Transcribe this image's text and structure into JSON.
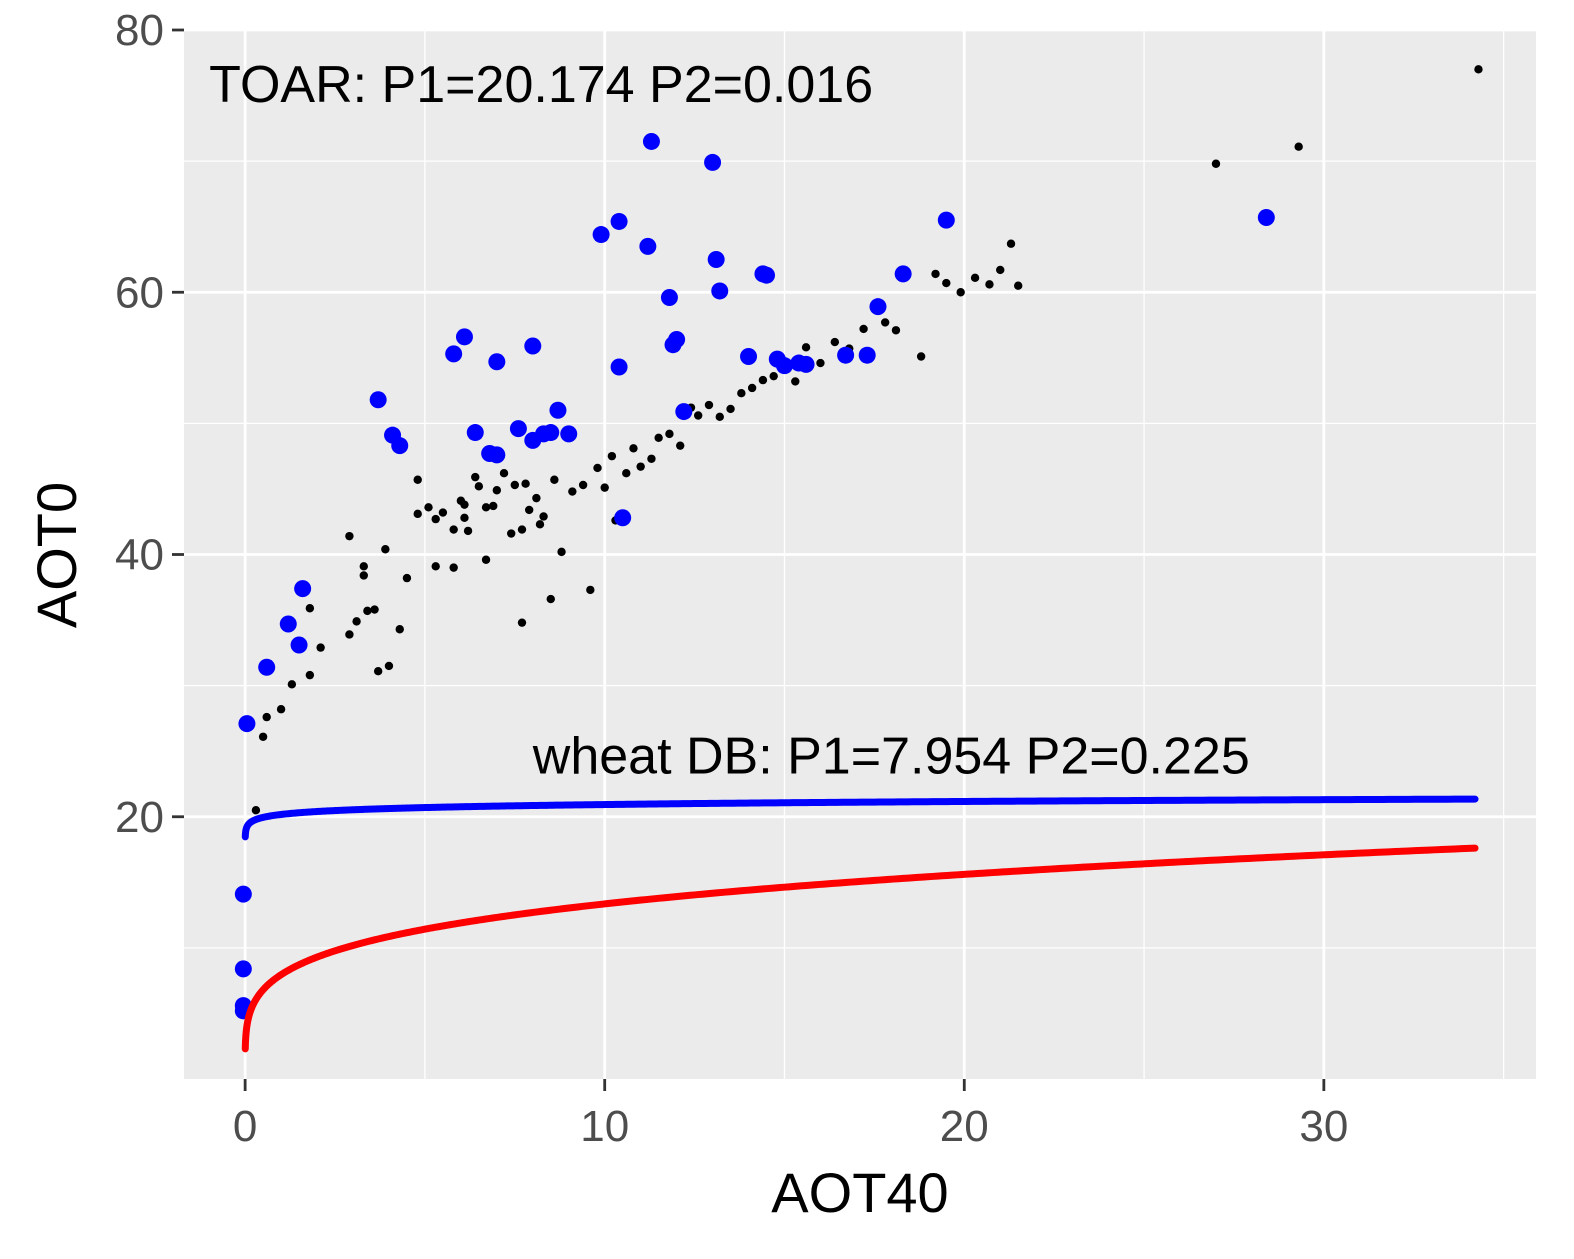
{
  "chart_data": {
    "type": "scatter",
    "xlabel": "AOT40",
    "ylabel": "AOT0",
    "xlim": [
      -1.7,
      35.9
    ],
    "ylim": [
      0,
      80
    ],
    "x_ticks": [
      0,
      10,
      20,
      30
    ],
    "y_ticks": [
      20,
      40,
      60,
      80
    ],
    "x_tick_labels": [
      "0",
      "10",
      "20",
      "30"
    ],
    "y_tick_labels": [
      "20",
      "40",
      "60",
      "80"
    ],
    "grid": true,
    "annotations": [
      {
        "text": "TOAR: P1=20.174  P2=0.016",
        "x": -1.0,
        "y": 74.5
      },
      {
        "text": "wheat DB: P1=7.954  P2=0.225",
        "x": 8.0,
        "y": 23.3
      }
    ],
    "curves": [
      {
        "color": "#0000ff",
        "P1": 20.174,
        "P2": 0.016,
        "x_range": [
          0,
          34.2
        ]
      },
      {
        "color": "#ff0000",
        "P1": 7.954,
        "P2": 0.225,
        "x_range": [
          0,
          34.2
        ]
      }
    ],
    "series": [
      {
        "color": "#0000ff",
        "points": [
          [
            -0.05,
            5.2
          ],
          [
            -0.05,
            5.6
          ],
          [
            -0.05,
            8.4
          ],
          [
            -0.05,
            14.1
          ],
          [
            0.05,
            27.1
          ],
          [
            0.6,
            31.4
          ],
          [
            1.2,
            34.7
          ],
          [
            1.5,
            33.1
          ],
          [
            1.6,
            37.4
          ],
          [
            3.7,
            51.8
          ],
          [
            4.1,
            49.1
          ],
          [
            4.3,
            48.3
          ],
          [
            5.8,
            55.3
          ],
          [
            6.1,
            56.6
          ],
          [
            6.4,
            49.3
          ],
          [
            6.8,
            47.7
          ],
          [
            7.0,
            47.6
          ],
          [
            7.0,
            54.7
          ],
          [
            7.6,
            49.6
          ],
          [
            8.0,
            55.9
          ],
          [
            8.0,
            48.7
          ],
          [
            8.3,
            49.2
          ],
          [
            8.5,
            49.3
          ],
          [
            8.7,
            51.0
          ],
          [
            9.0,
            49.2
          ],
          [
            9.9,
            64.4
          ],
          [
            10.4,
            54.3
          ],
          [
            10.4,
            65.4
          ],
          [
            10.5,
            42.8
          ],
          [
            11.2,
            63.5
          ],
          [
            11.3,
            71.5
          ],
          [
            11.8,
            59.6
          ],
          [
            11.9,
            56.0
          ],
          [
            12.0,
            56.4
          ],
          [
            12.2,
            50.9
          ],
          [
            13.0,
            69.9
          ],
          [
            13.1,
            62.5
          ],
          [
            13.2,
            60.1
          ],
          [
            14.0,
            55.1
          ],
          [
            14.4,
            61.4
          ],
          [
            14.5,
            61.3
          ],
          [
            14.8,
            54.9
          ],
          [
            15.0,
            54.4
          ],
          [
            15.4,
            54.6
          ],
          [
            15.6,
            54.5
          ],
          [
            16.7,
            55.2
          ],
          [
            17.3,
            55.2
          ],
          [
            17.6,
            58.9
          ],
          [
            18.3,
            61.4
          ],
          [
            19.5,
            65.5
          ],
          [
            28.4,
            65.7
          ]
        ]
      },
      {
        "color": "#000000",
        "points": [
          [
            0.3,
            20.5
          ],
          [
            0.5,
            26.1
          ],
          [
            0.6,
            27.6
          ],
          [
            1.0,
            28.2
          ],
          [
            1.3,
            30.1
          ],
          [
            1.8,
            30.8
          ],
          [
            1.8,
            35.9
          ],
          [
            2.1,
            32.9
          ],
          [
            2.9,
            33.9
          ],
          [
            2.9,
            41.4
          ],
          [
            3.1,
            34.9
          ],
          [
            3.3,
            39.1
          ],
          [
            3.3,
            38.4
          ],
          [
            3.4,
            35.7
          ],
          [
            3.6,
            35.8
          ],
          [
            3.7,
            31.1
          ],
          [
            3.9,
            40.4
          ],
          [
            4.0,
            31.5
          ],
          [
            4.3,
            34.3
          ],
          [
            4.5,
            38.2
          ],
          [
            4.8,
            45.7
          ],
          [
            4.8,
            43.1
          ],
          [
            5.1,
            43.6
          ],
          [
            5.3,
            42.7
          ],
          [
            5.3,
            39.1
          ],
          [
            5.5,
            43.2
          ],
          [
            5.8,
            41.9
          ],
          [
            5.8,
            39.0
          ],
          [
            6.0,
            44.1
          ],
          [
            6.1,
            43.8
          ],
          [
            6.1,
            42.8
          ],
          [
            6.2,
            41.8
          ],
          [
            6.4,
            45.9
          ],
          [
            6.5,
            45.2
          ],
          [
            6.7,
            43.6
          ],
          [
            6.7,
            39.6
          ],
          [
            6.9,
            43.7
          ],
          [
            7.0,
            44.9
          ],
          [
            7.2,
            46.2
          ],
          [
            7.4,
            41.6
          ],
          [
            7.5,
            45.3
          ],
          [
            7.7,
            41.9
          ],
          [
            7.7,
            34.8
          ],
          [
            7.8,
            45.4
          ],
          [
            7.9,
            43.4
          ],
          [
            8.1,
            44.3
          ],
          [
            8.2,
            42.3
          ],
          [
            8.3,
            42.9
          ],
          [
            8.5,
            36.6
          ],
          [
            8.6,
            45.7
          ],
          [
            8.8,
            40.2
          ],
          [
            9.1,
            44.8
          ],
          [
            9.4,
            45.3
          ],
          [
            9.6,
            37.3
          ],
          [
            9.8,
            46.6
          ],
          [
            10.0,
            45.1
          ],
          [
            10.2,
            47.5
          ],
          [
            10.3,
            42.6
          ],
          [
            10.6,
            46.2
          ],
          [
            10.8,
            48.1
          ],
          [
            11.0,
            46.7
          ],
          [
            11.3,
            47.3
          ],
          [
            11.5,
            48.9
          ],
          [
            11.8,
            49.2
          ],
          [
            12.1,
            48.3
          ],
          [
            12.4,
            51.2
          ],
          [
            12.6,
            50.6
          ],
          [
            12.9,
            51.4
          ],
          [
            13.2,
            50.5
          ],
          [
            13.5,
            51.1
          ],
          [
            13.8,
            52.3
          ],
          [
            14.1,
            52.7
          ],
          [
            14.4,
            53.3
          ],
          [
            14.7,
            53.6
          ],
          [
            15.0,
            54.2
          ],
          [
            15.3,
            53.2
          ],
          [
            15.6,
            55.8
          ],
          [
            16.0,
            54.6
          ],
          [
            16.4,
            56.2
          ],
          [
            16.8,
            55.7
          ],
          [
            17.2,
            57.2
          ],
          [
            17.8,
            57.7
          ],
          [
            18.1,
            57.1
          ],
          [
            18.8,
            55.1
          ],
          [
            19.2,
            61.4
          ],
          [
            19.5,
            60.7
          ],
          [
            19.9,
            60.0
          ],
          [
            20.3,
            61.1
          ],
          [
            20.7,
            60.6
          ],
          [
            21.0,
            61.7
          ],
          [
            21.3,
            63.7
          ],
          [
            21.5,
            60.5
          ],
          [
            27.0,
            69.8
          ],
          [
            29.3,
            71.1
          ],
          [
            34.3,
            77.0
          ]
        ]
      }
    ]
  }
}
